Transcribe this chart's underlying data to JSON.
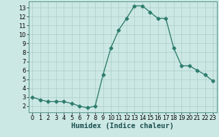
{
  "x": [
    0,
    1,
    2,
    3,
    4,
    5,
    6,
    7,
    8,
    9,
    10,
    11,
    12,
    13,
    14,
    15,
    16,
    17,
    18,
    19,
    20,
    21,
    22,
    23
  ],
  "y": [
    3.0,
    2.7,
    2.5,
    2.5,
    2.5,
    2.3,
    2.0,
    1.8,
    2.0,
    5.5,
    8.5,
    10.5,
    11.8,
    13.2,
    13.2,
    12.5,
    11.8,
    11.8,
    8.5,
    6.5,
    6.5,
    6.0,
    5.5,
    4.8
  ],
  "line_color": "#2e7d6e",
  "marker": "D",
  "marker_size": 2.5,
  "bg_color": "#cce8e4",
  "grid_color": "#aaccc8",
  "xlabel": "Humidex (Indice chaleur)",
  "xlim": [
    -0.5,
    23.5
  ],
  "ylim": [
    1.3,
    13.7
  ],
  "yticks": [
    2,
    3,
    4,
    5,
    6,
    7,
    8,
    9,
    10,
    11,
    12,
    13
  ],
  "xticks": [
    0,
    1,
    2,
    3,
    4,
    5,
    6,
    7,
    8,
    9,
    10,
    11,
    12,
    13,
    14,
    15,
    16,
    17,
    18,
    19,
    20,
    21,
    22,
    23
  ],
  "xlabel_fontsize": 7.5,
  "tick_fontsize": 6.0
}
